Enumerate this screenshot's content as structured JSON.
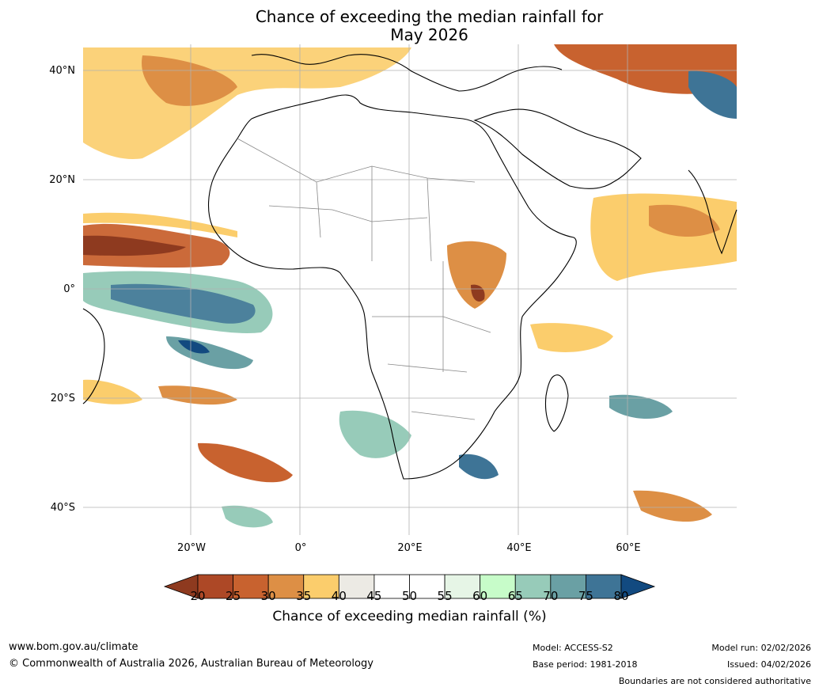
{
  "title": {
    "line1": "Chance of exceeding the median rainfall for",
    "line2": "May 2026"
  },
  "map": {
    "lon_range": [
      -40,
      80
    ],
    "lat_range": [
      -45,
      45
    ],
    "lat_ticks": [
      "40°N",
      "20°N",
      "0°",
      "20°S",
      "40°S"
    ],
    "lon_ticks": [
      "20°W",
      "0°",
      "20°E",
      "40°E",
      "60°E"
    ],
    "land_color": "#ffffff",
    "ocean_color": "#ffffff",
    "coast_color": "#000000",
    "border_color": "#888888",
    "grid_color": "#b0b0b0",
    "anomalies": [
      {
        "label": "Gulf of Guinea / tropical Atlantic dry band",
        "value_pct": 22
      },
      {
        "label": "Equatorial South Atlantic wet band",
        "value_pct": 76
      },
      {
        "label": "Central South Atlantic wet patch",
        "value_pct": 80
      },
      {
        "label": "North Africa / Mediterranean dry",
        "value_pct": 33
      },
      {
        "label": "Arabian Sea / India dry",
        "value_pct": 34
      },
      {
        "label": "Iran wet patch",
        "value_pct": 78
      },
      {
        "label": "Lake Victoria region dry",
        "value_pct": 27
      },
      {
        "label": "Southern Ocean dry streaks",
        "value_pct": 28
      },
      {
        "label": "Southern Africa wet",
        "value_pct": 64
      }
    ]
  },
  "colorbar": {
    "ticks": [
      "20",
      "25",
      "30",
      "35",
      "40",
      "45",
      "50",
      "55",
      "60",
      "65",
      "70",
      "75",
      "80"
    ],
    "colors": [
      "#8e3a1f",
      "#ad4826",
      "#c8622f",
      "#dd8f45",
      "#fbcd6c",
      "#eceae4",
      "#ffffff",
      "#ffffff",
      "#e6f5e6",
      "#c7fcc9",
      "#97cbb9",
      "#6aa0a4",
      "#3e7496",
      "#124a80"
    ],
    "title": "Chance of exceeding median rainfall (%)"
  },
  "footer": {
    "url": "www.bom.gov.au/climate",
    "copyright": "© Commonwealth of Australia 2026, Australian Bureau of Meteorology",
    "model": "Model: ACCESS-S2",
    "base_period": "Base period: 1981-2018",
    "model_run": "Model run: 02/02/2026",
    "issued": "Issued: 04/02/2026",
    "disclaimer": "Boundaries are not considered authoritative"
  }
}
